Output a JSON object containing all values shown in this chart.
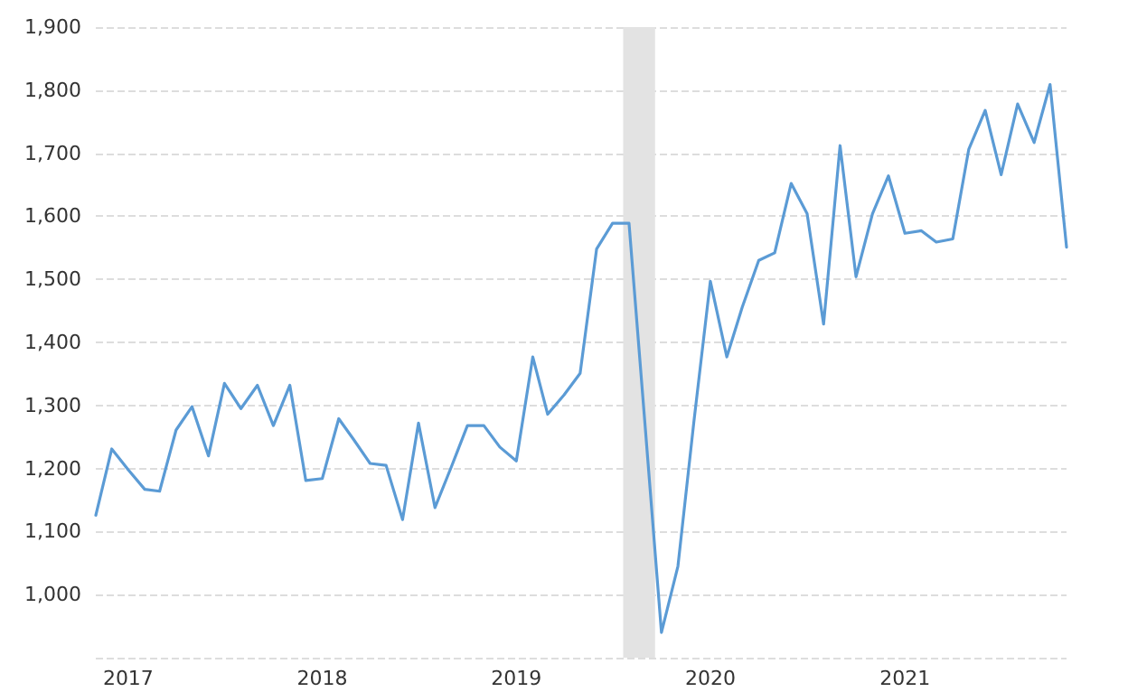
{
  "chart_data": {
    "type": "line",
    "x": [
      "2016-11",
      "2016-12",
      "2017-01",
      "2017-02",
      "2017-03",
      "2017-04",
      "2017-05",
      "2017-06",
      "2017-07",
      "2017-08",
      "2017-09",
      "2017-10",
      "2017-11",
      "2017-12",
      "2018-01",
      "2018-02",
      "2018-03",
      "2018-04",
      "2018-05",
      "2018-06",
      "2018-07",
      "2018-08",
      "2018-09",
      "2018-10",
      "2018-11",
      "2018-12",
      "2019-01",
      "2019-02",
      "2019-03",
      "2019-04",
      "2019-05",
      "2019-06",
      "2019-07",
      "2019-08",
      "2019-09",
      "2019-10",
      "2019-11",
      "2019-12",
      "2020-01",
      "2020-02",
      "2020-03",
      "2020-04",
      "2020-05",
      "2020-06",
      "2020-07",
      "2020-08",
      "2020-09",
      "2020-10",
      "2020-11",
      "2020-12",
      "2021-01",
      "2021-02",
      "2021-03",
      "2021-04",
      "2021-05",
      "2021-06",
      "2021-07",
      "2021-08",
      "2021-09",
      "2021-10",
      "2021-11"
    ],
    "series": [
      {
        "color": "#5b9bd5",
        "values": [
          1126,
          1231,
          1198,
          1167,
          1164,
          1261,
          1298,
          1220,
          1335,
          1295,
          1332,
          1268,
          1332,
          1181,
          1184,
          1279,
          1246,
          1208,
          1205,
          1119,
          1272,
          1138,
          1203,
          1268,
          1268,
          1234,
          1212,
          1377,
          1286,
          1317,
          1351,
          1548,
          1589,
          1589,
          1260,
          940,
          1045,
          1274,
          1497,
          1377,
          1456,
          1530,
          1542,
          1652,
          1604,
          1429,
          1712,
          1504,
          1604,
          1664,
          1573,
          1577,
          1559,
          1564,
          1706,
          1768,
          1666,
          1778,
          1717,
          1809,
          1551
        ]
      }
    ],
    "xlim": [
      "2016-11",
      "2021-11"
    ],
    "xticks": [
      "2017",
      "2018",
      "2019",
      "2020",
      "2021"
    ],
    "ylim": [
      900,
      1900
    ],
    "yticks": [
      {
        "value": 900,
        "label": null
      },
      {
        "value": 1000,
        "label": "1,000"
      },
      {
        "value": 1100,
        "label": "1,100"
      },
      {
        "value": 1200,
        "label": "1,200"
      },
      {
        "value": 1300,
        "label": "1,300"
      },
      {
        "value": 1400,
        "label": "1,400"
      },
      {
        "value": 1500,
        "label": "1,500"
      },
      {
        "value": 1600,
        "label": "1,600"
      },
      {
        "value": 1700,
        "label": "1,700"
      },
      {
        "value": 1800,
        "label": "1,800"
      },
      {
        "value": 1900,
        "label": "1,900"
      }
    ],
    "bands": [
      {
        "axis": "x",
        "from": "2019-07-21",
        "to": "2019-09-19",
        "color": "#e3e3e3"
      }
    ],
    "grid": "y",
    "marker": "none",
    "line_style": "solid"
  }
}
